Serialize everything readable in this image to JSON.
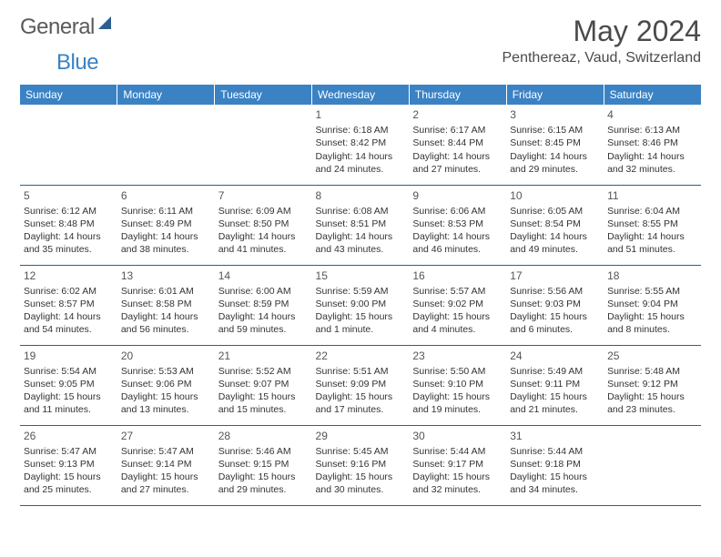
{
  "logo": {
    "text1": "General",
    "text2": "Blue"
  },
  "title": "May 2024",
  "location": "Penthereaz, Vaud, Switzerland",
  "colors": {
    "header_bg": "#3b82c4",
    "header_text": "#ffffff",
    "border": "#2b5f8f",
    "text": "#333333",
    "title_text": "#4a4a4a"
  },
  "weekdays": [
    "Sunday",
    "Monday",
    "Tuesday",
    "Wednesday",
    "Thursday",
    "Friday",
    "Saturday"
  ],
  "weeks": [
    [
      null,
      null,
      null,
      {
        "n": "1",
        "sr": "6:18 AM",
        "ss": "8:42 PM",
        "dl": "14 hours and 24 minutes."
      },
      {
        "n": "2",
        "sr": "6:17 AM",
        "ss": "8:44 PM",
        "dl": "14 hours and 27 minutes."
      },
      {
        "n": "3",
        "sr": "6:15 AM",
        "ss": "8:45 PM",
        "dl": "14 hours and 29 minutes."
      },
      {
        "n": "4",
        "sr": "6:13 AM",
        "ss": "8:46 PM",
        "dl": "14 hours and 32 minutes."
      }
    ],
    [
      {
        "n": "5",
        "sr": "6:12 AM",
        "ss": "8:48 PM",
        "dl": "14 hours and 35 minutes."
      },
      {
        "n": "6",
        "sr": "6:11 AM",
        "ss": "8:49 PM",
        "dl": "14 hours and 38 minutes."
      },
      {
        "n": "7",
        "sr": "6:09 AM",
        "ss": "8:50 PM",
        "dl": "14 hours and 41 minutes."
      },
      {
        "n": "8",
        "sr": "6:08 AM",
        "ss": "8:51 PM",
        "dl": "14 hours and 43 minutes."
      },
      {
        "n": "9",
        "sr": "6:06 AM",
        "ss": "8:53 PM",
        "dl": "14 hours and 46 minutes."
      },
      {
        "n": "10",
        "sr": "6:05 AM",
        "ss": "8:54 PM",
        "dl": "14 hours and 49 minutes."
      },
      {
        "n": "11",
        "sr": "6:04 AM",
        "ss": "8:55 PM",
        "dl": "14 hours and 51 minutes."
      }
    ],
    [
      {
        "n": "12",
        "sr": "6:02 AM",
        "ss": "8:57 PM",
        "dl": "14 hours and 54 minutes."
      },
      {
        "n": "13",
        "sr": "6:01 AM",
        "ss": "8:58 PM",
        "dl": "14 hours and 56 minutes."
      },
      {
        "n": "14",
        "sr": "6:00 AM",
        "ss": "8:59 PM",
        "dl": "14 hours and 59 minutes."
      },
      {
        "n": "15",
        "sr": "5:59 AM",
        "ss": "9:00 PM",
        "dl": "15 hours and 1 minute."
      },
      {
        "n": "16",
        "sr": "5:57 AM",
        "ss": "9:02 PM",
        "dl": "15 hours and 4 minutes."
      },
      {
        "n": "17",
        "sr": "5:56 AM",
        "ss": "9:03 PM",
        "dl": "15 hours and 6 minutes."
      },
      {
        "n": "18",
        "sr": "5:55 AM",
        "ss": "9:04 PM",
        "dl": "15 hours and 8 minutes."
      }
    ],
    [
      {
        "n": "19",
        "sr": "5:54 AM",
        "ss": "9:05 PM",
        "dl": "15 hours and 11 minutes."
      },
      {
        "n": "20",
        "sr": "5:53 AM",
        "ss": "9:06 PM",
        "dl": "15 hours and 13 minutes."
      },
      {
        "n": "21",
        "sr": "5:52 AM",
        "ss": "9:07 PM",
        "dl": "15 hours and 15 minutes."
      },
      {
        "n": "22",
        "sr": "5:51 AM",
        "ss": "9:09 PM",
        "dl": "15 hours and 17 minutes."
      },
      {
        "n": "23",
        "sr": "5:50 AM",
        "ss": "9:10 PM",
        "dl": "15 hours and 19 minutes."
      },
      {
        "n": "24",
        "sr": "5:49 AM",
        "ss": "9:11 PM",
        "dl": "15 hours and 21 minutes."
      },
      {
        "n": "25",
        "sr": "5:48 AM",
        "ss": "9:12 PM",
        "dl": "15 hours and 23 minutes."
      }
    ],
    [
      {
        "n": "26",
        "sr": "5:47 AM",
        "ss": "9:13 PM",
        "dl": "15 hours and 25 minutes."
      },
      {
        "n": "27",
        "sr": "5:47 AM",
        "ss": "9:14 PM",
        "dl": "15 hours and 27 minutes."
      },
      {
        "n": "28",
        "sr": "5:46 AM",
        "ss": "9:15 PM",
        "dl": "15 hours and 29 minutes."
      },
      {
        "n": "29",
        "sr": "5:45 AM",
        "ss": "9:16 PM",
        "dl": "15 hours and 30 minutes."
      },
      {
        "n": "30",
        "sr": "5:44 AM",
        "ss": "9:17 PM",
        "dl": "15 hours and 32 minutes."
      },
      {
        "n": "31",
        "sr": "5:44 AM",
        "ss": "9:18 PM",
        "dl": "15 hours and 34 minutes."
      },
      null
    ]
  ],
  "labels": {
    "sunrise": "Sunrise: ",
    "sunset": "Sunset: ",
    "daylight": "Daylight: "
  }
}
